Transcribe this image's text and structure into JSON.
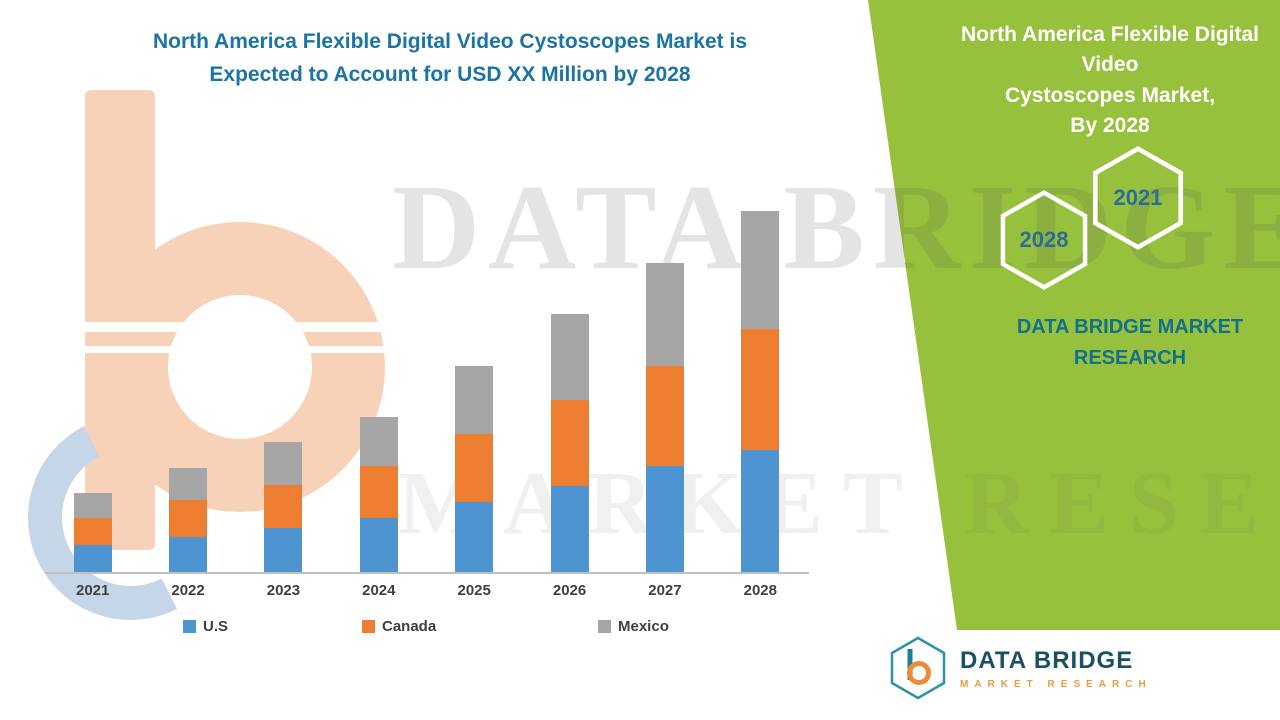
{
  "title": {
    "text": "North America Flexible Digital Video Cystoscopes Market is\nExpected to Account for USD XX Million by 2028",
    "color": "#1c74a5"
  },
  "panel": {
    "background": "#97c13c",
    "title": "North America Flexible Digital Video\nCystoscopes Market,\nBy 2028",
    "hexagons": [
      {
        "label": "2028"
      },
      {
        "label": "2021"
      }
    ],
    "brand": "DATA BRIDGE MARKET\nRESEARCH"
  },
  "watermark": {
    "line1": "DATA BRIDGE",
    "line2": "MARKET RESEARCH"
  },
  "logo": {
    "name": "DATA BRIDGE",
    "tagline": "MARKET RESEARCH"
  },
  "chart_data": {
    "type": "bar",
    "stacked": true,
    "title": "North America Flexible Digital Video Cystoscopes Market is Expected to Account for USD XX Million by 2028",
    "categories": [
      "2021",
      "2022",
      "2023",
      "2024",
      "2025",
      "2026",
      "2027",
      "2028"
    ],
    "series": [
      {
        "name": "U.S",
        "color": "#4d94d0",
        "values": [
          27,
          35,
          44,
          54,
          70,
          86,
          106,
          122
        ]
      },
      {
        "name": "Canada",
        "color": "#ed7d31",
        "values": [
          27,
          37,
          43,
          52,
          68,
          86,
          100,
          121
        ]
      },
      {
        "name": "Mexico",
        "color": "#a6a6a6",
        "values": [
          25,
          32,
          43,
          49,
          68,
          86,
          103,
          118
        ]
      }
    ],
    "xlabel": "",
    "ylabel": "",
    "value_axis_visible": false,
    "units": "relative units (actual values shown as USD XX Million, axis unlabeled)",
    "legend_position": "bottom",
    "grid": false
  }
}
